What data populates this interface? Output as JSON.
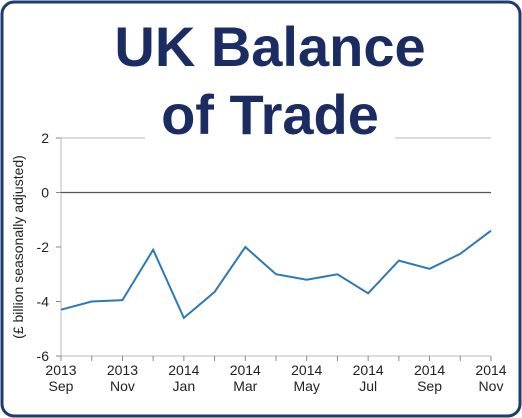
{
  "chart_data": {
    "type": "line",
    "title_lines": [
      "UK Balance",
      "of Trade"
    ],
    "y_label": "(£ billion seasonally adjusted)",
    "categories": [
      "2013 Sep",
      null,
      "2013 Nov",
      null,
      "2014 Jan",
      null,
      "2014 Mar",
      null,
      "2014 May",
      null,
      "2014 Jul",
      null,
      "2014 Sep",
      null,
      "2014 Nov"
    ],
    "series": [
      {
        "name": "Balance of trade",
        "color": "#2e79b5",
        "values": [
          -4.3,
          -4.0,
          -3.95,
          -2.1,
          -4.6,
          -3.65,
          -2.0,
          -3.0,
          -3.2,
          -3.0,
          -3.7,
          -2.5,
          -2.8,
          -2.25,
          -1.4
        ]
      }
    ],
    "ylim": [
      -6,
      2
    ],
    "yticks": [
      -6,
      -4,
      -2,
      0,
      2
    ],
    "zero_line": true
  }
}
